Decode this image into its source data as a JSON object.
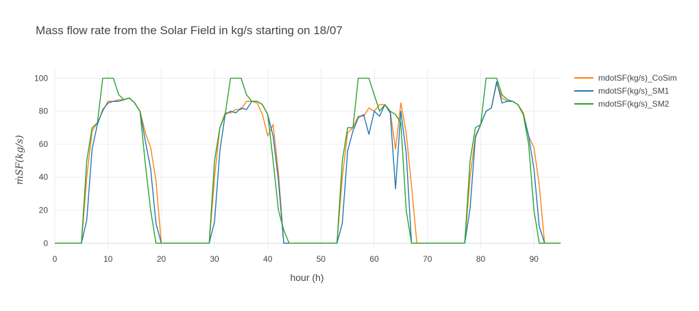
{
  "chart_data": {
    "type": "line",
    "title": "Mass flow rate from the Solar Field in kg/s starting on 18/07",
    "xlabel": "hour (h)",
    "ylabel": "ṁSF(kg/s)",
    "xlim": [
      0,
      95
    ],
    "ylim": [
      -3,
      106
    ],
    "xticks": [
      0,
      10,
      20,
      30,
      40,
      50,
      60,
      70,
      80,
      90
    ],
    "yticks": [
      0,
      20,
      40,
      60,
      80,
      100
    ],
    "grid": true,
    "legend_position": "top-right",
    "x": [
      0,
      1,
      2,
      3,
      4,
      5,
      6,
      7,
      8,
      9,
      10,
      11,
      12,
      13,
      14,
      15,
      16,
      17,
      18,
      19,
      20,
      21,
      22,
      23,
      24,
      25,
      26,
      27,
      28,
      29,
      30,
      31,
      32,
      33,
      34,
      35,
      36,
      37,
      38,
      39,
      40,
      41,
      42,
      43,
      44,
      45,
      46,
      47,
      48,
      49,
      50,
      51,
      52,
      53,
      54,
      55,
      56,
      57,
      58,
      59,
      60,
      61,
      62,
      63,
      64,
      65,
      66,
      67,
      68,
      69,
      70,
      71,
      72,
      73,
      74,
      75,
      76,
      77,
      78,
      79,
      80,
      81,
      82,
      83,
      84,
      85,
      86,
      87,
      88,
      89,
      90,
      91,
      92,
      93,
      94,
      95
    ],
    "series": [
      {
        "name": "mdotSF(kg/s)_CoSim",
        "color": "#ff7f0e",
        "values": [
          0,
          0,
          0,
          0,
          0,
          0,
          40,
          68,
          73,
          80,
          86,
          86,
          87,
          87,
          88,
          85,
          80,
          67,
          58,
          38,
          0,
          0,
          0,
          0,
          0,
          0,
          0,
          0,
          0,
          0,
          40,
          70,
          79,
          79,
          81,
          81,
          86,
          86,
          85,
          78,
          65,
          72,
          43,
          0,
          0,
          0,
          0,
          0,
          0,
          0,
          0,
          0,
          0,
          0,
          40,
          67,
          70,
          77,
          77,
          82,
          80,
          84,
          84,
          80,
          57,
          85,
          67,
          35,
          0,
          0,
          0,
          0,
          0,
          0,
          0,
          0,
          0,
          0,
          40,
          65,
          72,
          80,
          82,
          97,
          88,
          86,
          86,
          84,
          79,
          65,
          58,
          35,
          0,
          0,
          0,
          0
        ]
      },
      {
        "name": "mdotSF(kg/s)_SM1",
        "color": "#1f77b4",
        "values": [
          0,
          0,
          0,
          0,
          0,
          0,
          14,
          57,
          72,
          81,
          85,
          86,
          86,
          87,
          88,
          85,
          80,
          62,
          45,
          12,
          0,
          0,
          0,
          0,
          0,
          0,
          0,
          0,
          0,
          0,
          13,
          56,
          78,
          80,
          79,
          82,
          81,
          86,
          86,
          84,
          78,
          65,
          38,
          0,
          0,
          0,
          0,
          0,
          0,
          0,
          0,
          0,
          0,
          0,
          12,
          56,
          68,
          76,
          78,
          66,
          80,
          77,
          84,
          79,
          33,
          80,
          55,
          0,
          0,
          0,
          0,
          0,
          0,
          0,
          0,
          0,
          0,
          0,
          21,
          64,
          72,
          80,
          82,
          98,
          85,
          86,
          86,
          84,
          78,
          65,
          45,
          10,
          0,
          0,
          0,
          0
        ]
      },
      {
        "name": "mdotSF(kg/s)_SM2",
        "color": "#2ca02c",
        "values": [
          0,
          0,
          0,
          0,
          0,
          0,
          50,
          70,
          73,
          100,
          100,
          100,
          90,
          87,
          88,
          85,
          80,
          48,
          20,
          0,
          0,
          0,
          0,
          0,
          0,
          0,
          0,
          0,
          0,
          0,
          50,
          70,
          78,
          100,
          100,
          100,
          90,
          86,
          86,
          84,
          78,
          50,
          20,
          8,
          0,
          0,
          0,
          0,
          0,
          0,
          0,
          0,
          0,
          0,
          50,
          70,
          70,
          100,
          100,
          100,
          90,
          80,
          84,
          80,
          78,
          73,
          20,
          0,
          0,
          0,
          0,
          0,
          0,
          0,
          0,
          0,
          0,
          0,
          50,
          70,
          72,
          100,
          100,
          100,
          90,
          87,
          86,
          84,
          78,
          60,
          20,
          0,
          0,
          0,
          0,
          0
        ]
      }
    ]
  }
}
